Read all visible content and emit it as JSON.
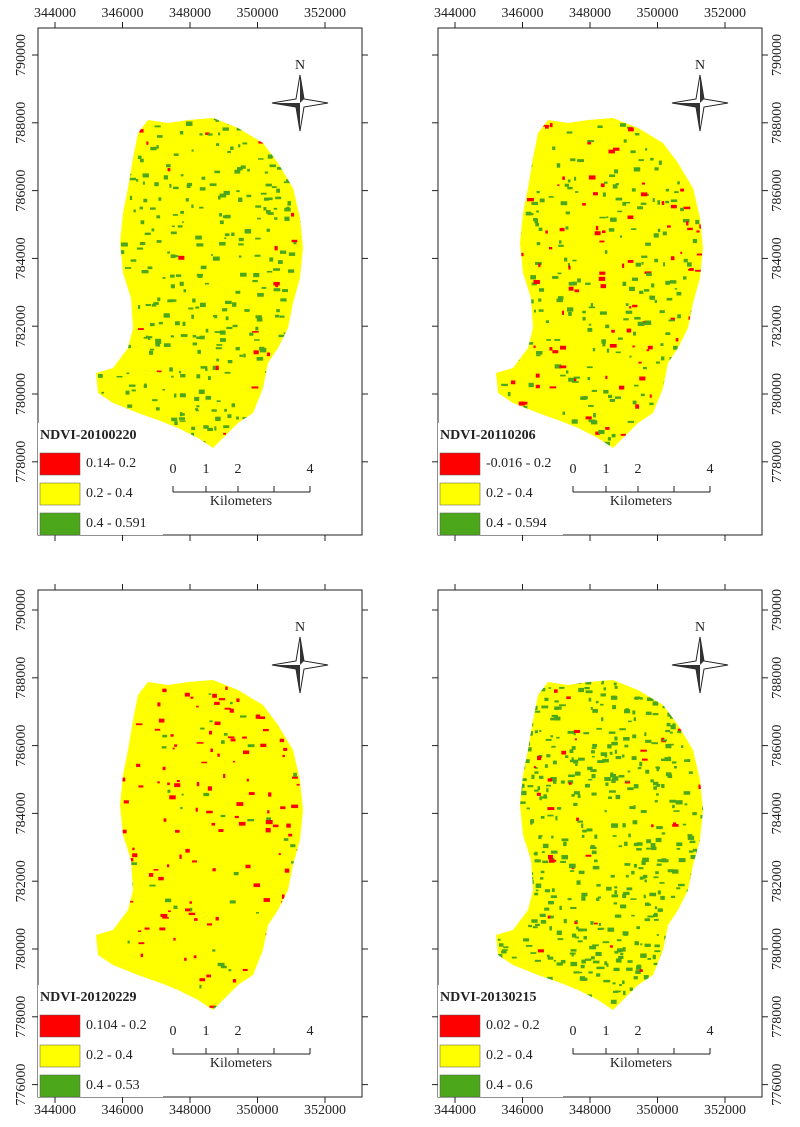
{
  "x_axis_labels": [
    "344000",
    "346000",
    "348000",
    "350000",
    "352000"
  ],
  "y_axis_labels": [
    "790000",
    "788000",
    "786000",
    "784000",
    "782000",
    "780000",
    "778000",
    "776000"
  ],
  "north": "N",
  "scale_bar": {
    "labels": [
      "0",
      "1",
      "2",
      "4"
    ],
    "unit": "Kilometers"
  },
  "panels": [
    {
      "title": "NDVI-20100220",
      "legend": [
        {
          "label": "0.14- 0.2",
          "color": "#ff0000"
        },
        {
          "label": "0.2 - 0.4",
          "color": "#ffff00"
        },
        {
          "label": "0.4 - 0.591",
          "color": "#4ca81a"
        }
      ]
    },
    {
      "title": "NDVI-20110206",
      "legend": [
        {
          "label": "-0.016 - 0.2",
          "color": "#ff0000"
        },
        {
          "label": "0.2 - 0.4",
          "color": "#ffff00"
        },
        {
          "label": "0.4 - 0.594",
          "color": "#4ca81a"
        }
      ]
    },
    {
      "title": "NDVI-20120229",
      "legend": [
        {
          "label": "0.104 - 0.2",
          "color": "#ff0000"
        },
        {
          "label": "0.2 - 0.4",
          "color": "#ffff00"
        },
        {
          "label": "0.4 - 0.53",
          "color": "#4ca81a"
        }
      ]
    },
    {
      "title": "NDVI-20130215",
      "legend": [
        {
          "label": "0.02 - 0.2",
          "color": "#ff0000"
        },
        {
          "label": "0.2 - 0.4",
          "color": "#ffff00"
        },
        {
          "label": "0.4 - 0.6",
          "color": "#4ca81a"
        }
      ]
    }
  ]
}
